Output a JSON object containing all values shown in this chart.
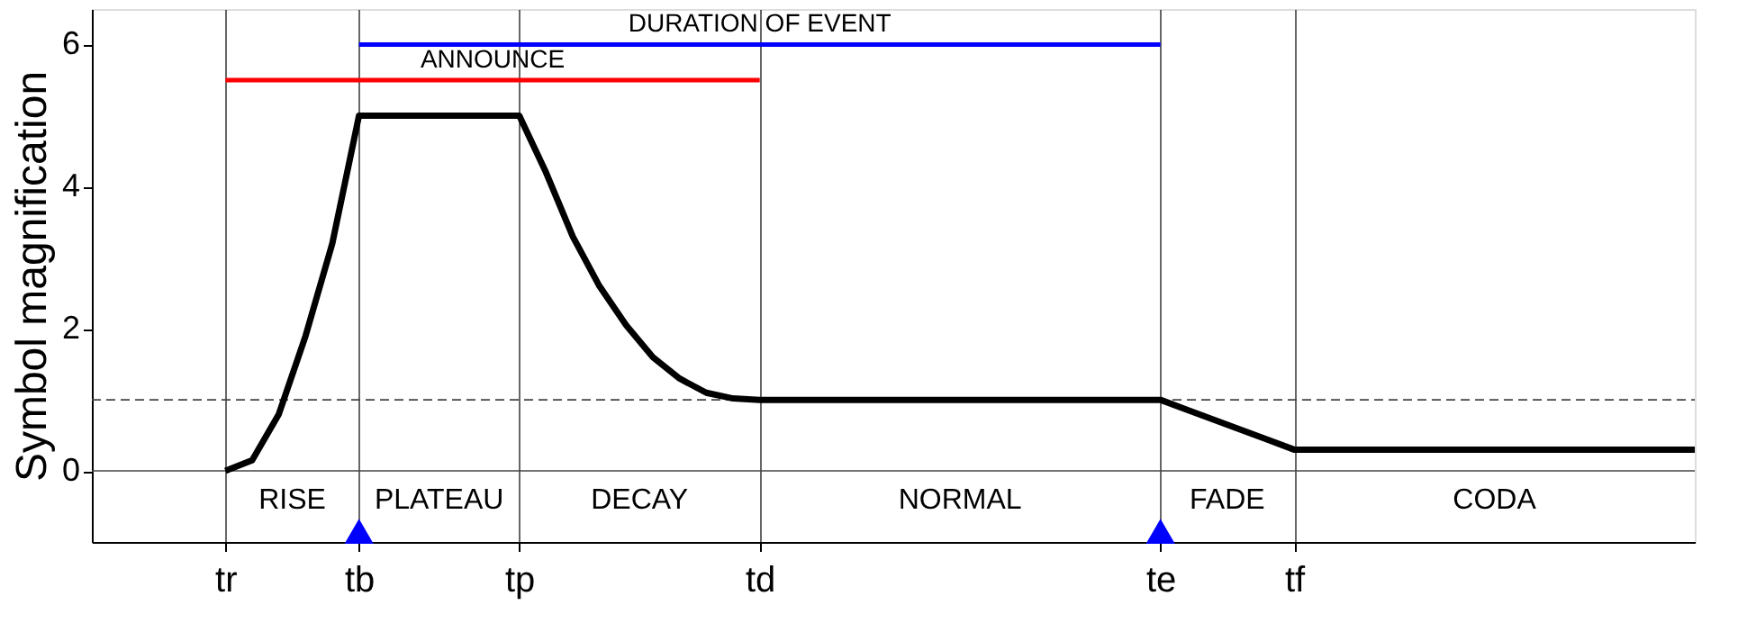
{
  "chart_data": {
    "type": "line",
    "ylabel": "Symbol magnification",
    "categories": [
      null,
      null,
      null,
      null,
      null,
      "tr",
      null,
      null,
      null,
      null,
      "tb",
      null,
      null,
      null,
      null,
      null,
      "tp",
      null,
      null,
      null,
      null,
      null,
      null,
      null,
      null,
      "td",
      null,
      null,
      null,
      null,
      null,
      null,
      null,
      null,
      null,
      null,
      null,
      null,
      null,
      null,
      "te",
      null,
      null,
      null,
      null,
      "tf",
      null,
      null,
      null,
      null,
      null,
      null,
      null,
      null,
      null,
      null,
      null,
      null,
      null,
      null,
      null
    ],
    "ylim": [
      -1,
      6.5
    ],
    "yticks": [
      0,
      2,
      4,
      6
    ],
    "grid": "x",
    "legend": false,
    "series": [
      {
        "color": "#000000",
        "values": [
          null,
          null,
          null,
          null,
          null,
          0,
          0.15,
          0.8,
          1.9,
          3.2,
          5,
          5,
          5,
          5,
          5,
          5,
          5,
          4.2,
          3.3,
          2.6,
          2.05,
          1.6,
          1.3,
          1.1,
          1.02,
          1,
          1,
          1,
          1,
          1,
          1,
          1,
          1,
          1,
          1,
          1,
          1,
          1,
          1,
          1,
          1,
          0.86,
          0.72,
          0.58,
          0.44,
          0.3,
          0.3,
          0.3,
          0.3,
          0.3,
          0.3,
          0.3,
          0.3,
          0.3,
          0.3,
          0.3,
          0.3,
          0.3,
          0.3,
          0.3,
          0.3
        ]
      },
      {
        "type": "line",
        "name": "ANNOUNCE",
        "color": "#ff0000",
        "values": [
          null,
          null,
          null,
          null,
          null,
          5.5,
          null,
          null,
          null,
          null,
          null,
          null,
          null,
          null,
          null,
          null,
          null,
          null,
          null,
          null,
          null,
          null,
          null,
          null,
          null,
          5.5,
          null,
          null,
          null,
          null,
          null,
          null,
          null,
          null,
          null,
          null,
          null,
          null,
          null,
          null,
          null,
          null,
          null,
          null,
          null,
          null,
          null,
          null,
          null,
          null,
          null,
          null,
          null,
          null,
          null,
          null,
          null,
          null,
          null,
          null,
          null
        ]
      },
      {
        "type": "line",
        "name": "DURATION OF EVENT",
        "color": "#0000ff",
        "values": [
          null,
          null,
          null,
          null,
          null,
          null,
          null,
          null,
          null,
          null,
          6,
          null,
          null,
          null,
          null,
          null,
          null,
          null,
          null,
          null,
          null,
          null,
          null,
          null,
          null,
          null,
          null,
          null,
          null,
          null,
          null,
          null,
          null,
          null,
          null,
          null,
          null,
          null,
          null,
          null,
          6,
          null,
          null,
          null,
          null,
          null,
          null,
          null,
          null,
          null,
          null,
          null,
          null,
          null,
          null,
          null,
          null,
          null,
          null,
          null,
          null
        ]
      },
      {
        "type": "scatter",
        "marker": "triangle",
        "color": "#0000ff",
        "values": [
          null,
          null,
          null,
          null,
          null,
          null,
          null,
          null,
          null,
          null,
          -0.85,
          null,
          null,
          null,
          null,
          null,
          null,
          null,
          null,
          null,
          null,
          null,
          null,
          null,
          null,
          null,
          null,
          null,
          null,
          null,
          null,
          null,
          null,
          null,
          null,
          null,
          null,
          null,
          null,
          null,
          -0.85,
          null,
          null,
          null,
          null,
          null,
          null,
          null,
          null,
          null,
          null,
          null,
          null,
          null,
          null,
          null,
          null,
          null,
          null,
          null,
          null
        ]
      }
    ],
    "ref_lines": [
      {
        "axis": "y",
        "value": 0,
        "line_style": "solid"
      },
      {
        "axis": "y",
        "value": 1,
        "line_style": "dashed"
      }
    ],
    "annotations": [
      "RISE",
      "PLATEAU",
      "DECAY",
      "NORMAL",
      "FADE",
      "CODA"
    ]
  }
}
